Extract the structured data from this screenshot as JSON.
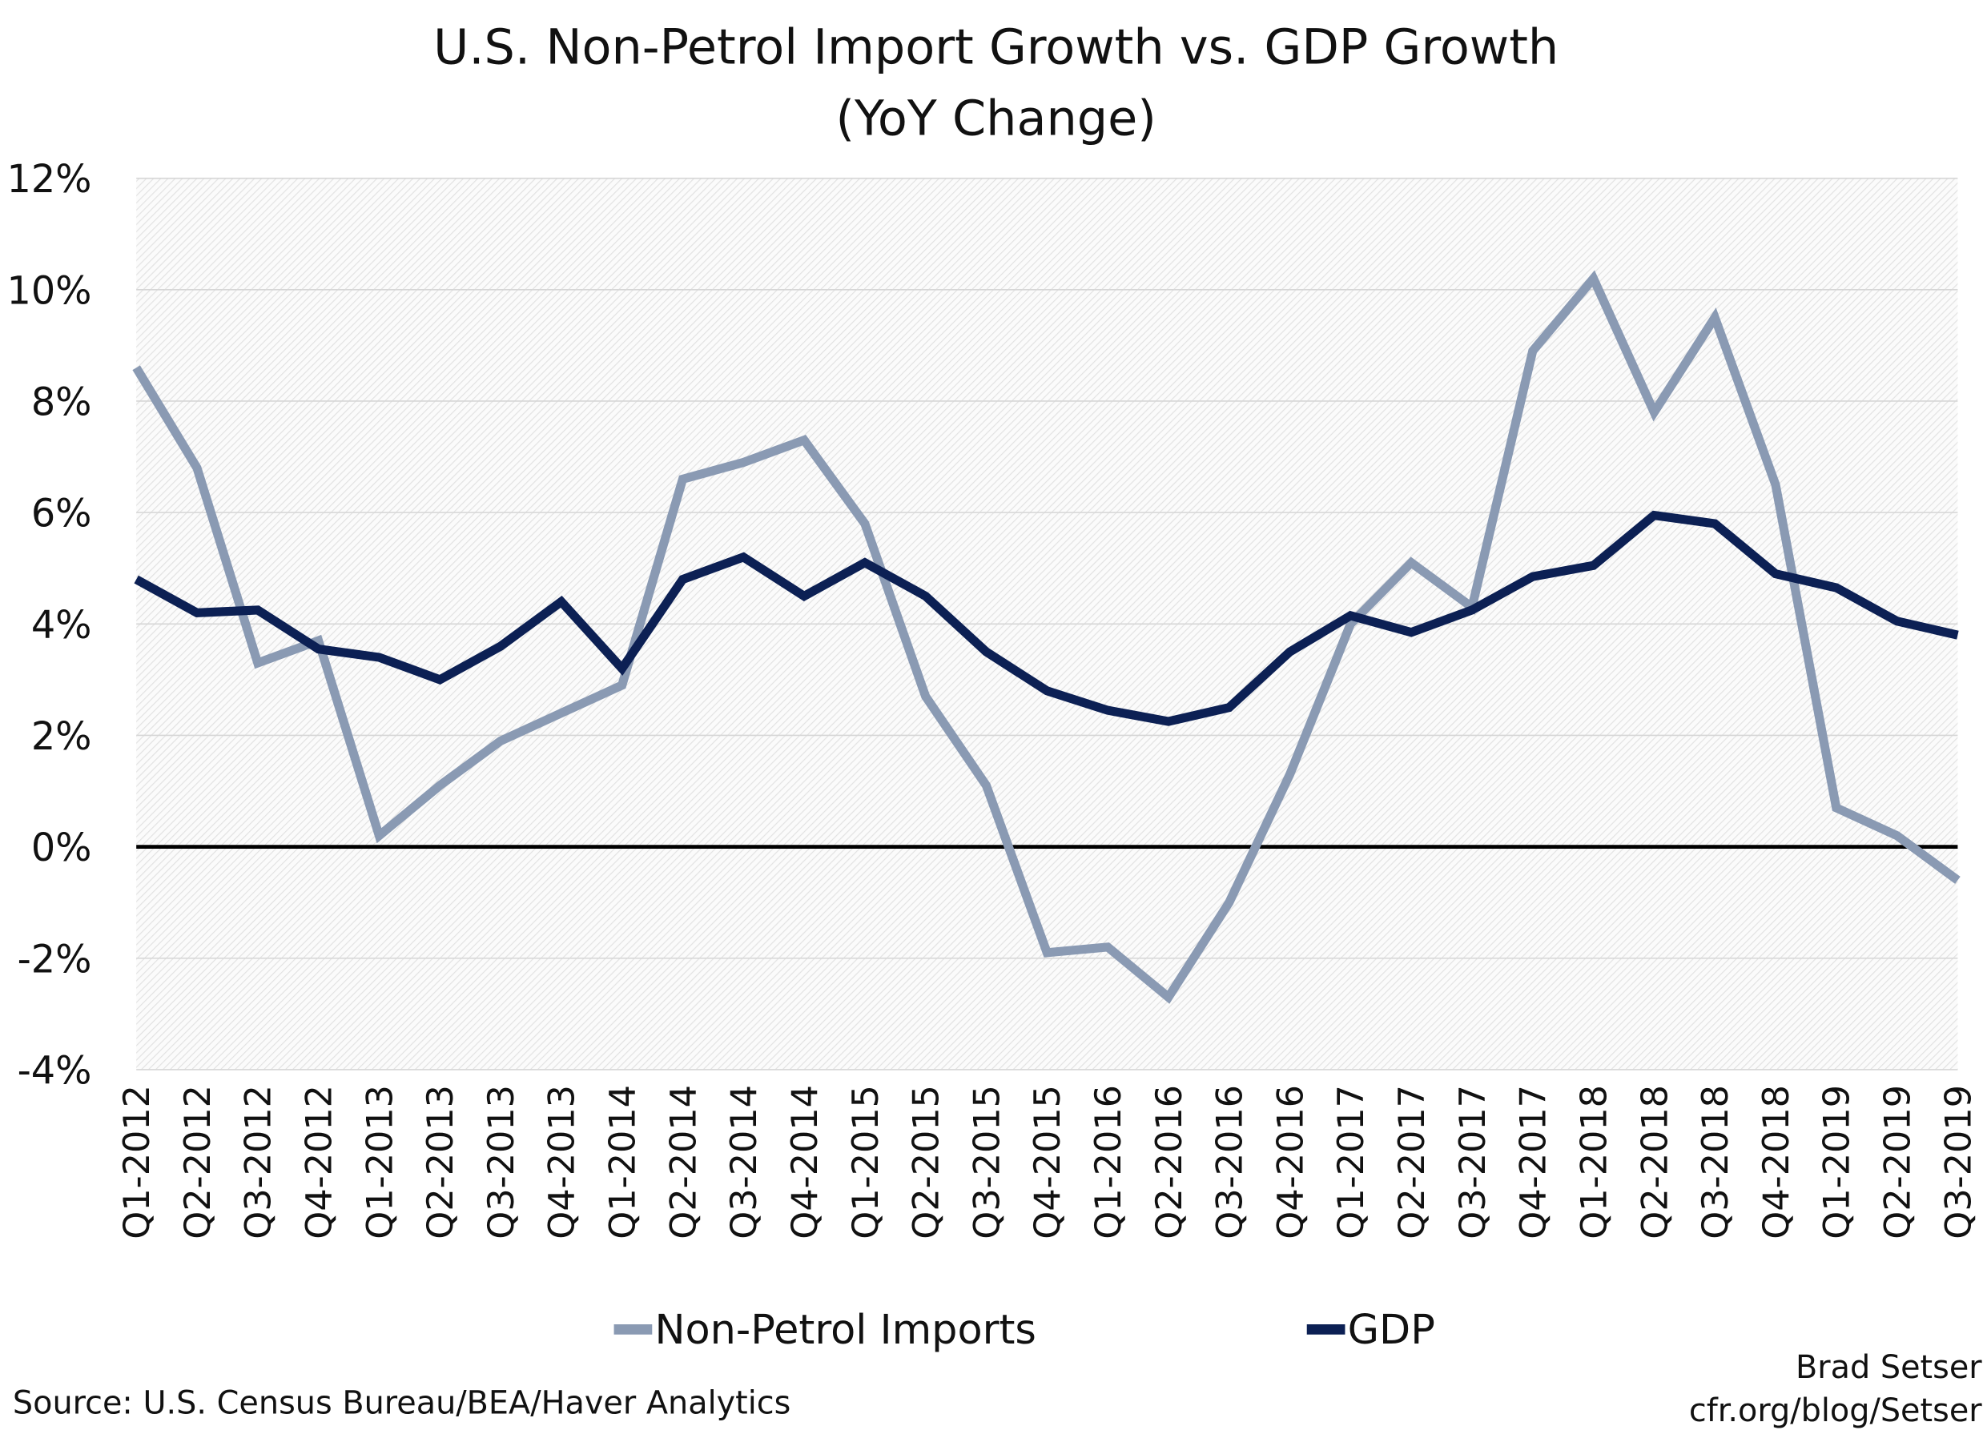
{
  "chart_data": {
    "type": "line",
    "title": "U.S. Non-Petrol Import Growth vs. GDP Growth",
    "subtitle": "(YoY Change)",
    "xlabel": "",
    "ylabel": "",
    "ylim": [
      -4,
      12
    ],
    "ytick_step": 2,
    "ytick_format": "percent",
    "grid": true,
    "legend_placement": "bottom",
    "categories": [
      "Q1-2012",
      "Q2-2012",
      "Q3-2012",
      "Q4-2012",
      "Q1-2013",
      "Q2-2013",
      "Q3-2013",
      "Q4-2013",
      "Q1-2014",
      "Q2-2014",
      "Q3-2014",
      "Q4-2014",
      "Q1-2015",
      "Q2-2015",
      "Q3-2015",
      "Q4-2015",
      "Q1-2016",
      "Q2-2016",
      "Q3-2016",
      "Q4-2016",
      "Q1-2017",
      "Q2-2017",
      "Q3-2017",
      "Q4-2017",
      "Q1-2018",
      "Q2-2018",
      "Q3-2018",
      "Q4-2018",
      "Q1-2019",
      "Q2-2019",
      "Q3-2019"
    ],
    "series": [
      {
        "name": "Non-Petrol Imports",
        "color": "#8a9ab3",
        "values": [
          8.6,
          6.8,
          3.3,
          3.7,
          0.2,
          1.1,
          1.9,
          2.4,
          2.9,
          6.6,
          6.9,
          7.3,
          5.8,
          2.7,
          1.1,
          -1.9,
          -1.8,
          -2.7,
          -1.0,
          1.3,
          4.0,
          5.1,
          4.3,
          8.9,
          10.2,
          7.8,
          9.5,
          6.5,
          0.7,
          0.2,
          -0.6
        ]
      },
      {
        "name": "GDP",
        "color": "#0c2054",
        "values": [
          4.8,
          4.2,
          4.25,
          3.55,
          3.4,
          3.0,
          3.6,
          4.4,
          3.2,
          4.8,
          5.2,
          4.5,
          5.1,
          4.5,
          3.5,
          2.8,
          2.45,
          2.25,
          2.5,
          3.5,
          4.15,
          3.85,
          4.25,
          4.85,
          5.05,
          5.95,
          5.8,
          4.9,
          4.65,
          4.05,
          3.8
        ]
      }
    ],
    "zero_line": true
  },
  "source": "Source: U.S. Census Bureau/BEA/Haver Analytics",
  "credit": {
    "author": "Brad Setser",
    "site": "cfr.org/blog/Setser"
  }
}
